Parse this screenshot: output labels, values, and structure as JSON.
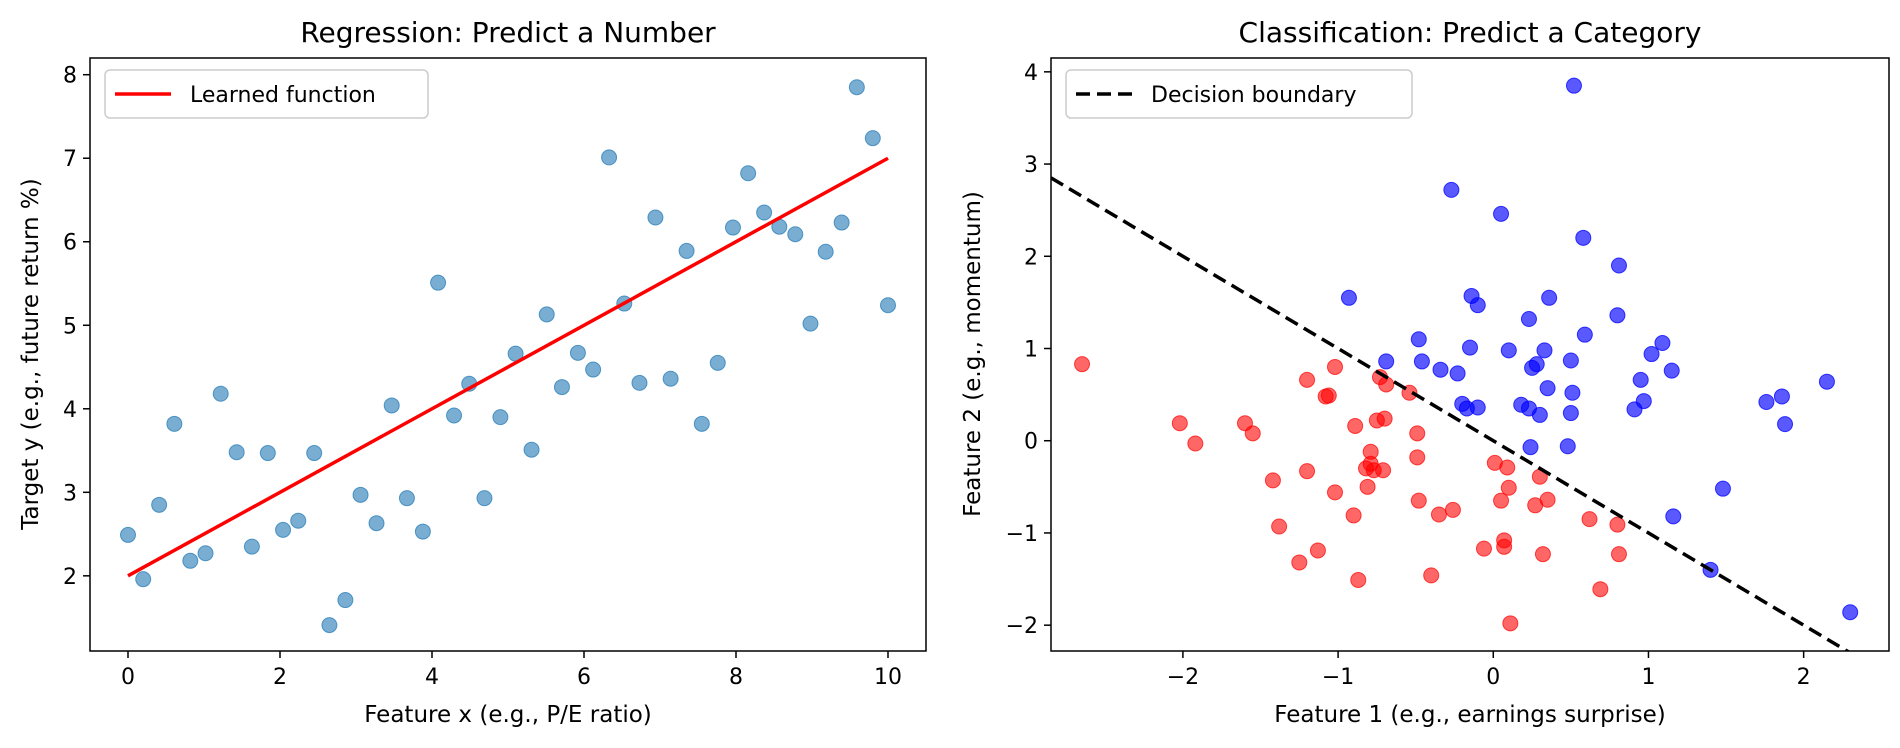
{
  "chart_data": [
    {
      "type": "scatter",
      "title": "Regression: Predict a Number",
      "xlabel": "Feature x (e.g., P/E ratio)",
      "ylabel": "Target y (e.g., future return %)",
      "xlim": [
        -0.5,
        10.5
      ],
      "ylim": [
        1.1,
        8.2
      ],
      "xticks": [
        0,
        2,
        4,
        6,
        8,
        10
      ],
      "yticks": [
        2,
        3,
        4,
        5,
        6,
        7,
        8
      ],
      "legend": {
        "position": "top-left",
        "entries": [
          "Learned function"
        ]
      },
      "colors": {
        "points": "#1f77b4",
        "line": "#ff0000"
      },
      "series": [
        {
          "name": "Data points",
          "kind": "scatter",
          "points": [
            [
              0.0,
              2.49
            ],
            [
              0.2,
              1.96
            ],
            [
              0.41,
              2.85
            ],
            [
              0.61,
              3.82
            ],
            [
              0.82,
              2.18
            ],
            [
              1.02,
              2.27
            ],
            [
              1.22,
              4.18
            ],
            [
              1.43,
              3.48
            ],
            [
              1.63,
              2.35
            ],
            [
              1.84,
              3.47
            ],
            [
              2.04,
              2.55
            ],
            [
              2.24,
              2.66
            ],
            [
              2.45,
              3.47
            ],
            [
              2.65,
              1.41
            ],
            [
              2.86,
              1.71
            ],
            [
              3.06,
              2.97
            ],
            [
              3.27,
              2.63
            ],
            [
              3.47,
              4.04
            ],
            [
              3.67,
              2.93
            ],
            [
              3.88,
              2.53
            ],
            [
              4.08,
              5.51
            ],
            [
              4.29,
              3.92
            ],
            [
              4.49,
              4.3
            ],
            [
              4.69,
              2.93
            ],
            [
              4.9,
              3.9
            ],
            [
              5.1,
              4.66
            ],
            [
              5.31,
              3.51
            ],
            [
              5.51,
              5.13
            ],
            [
              5.71,
              4.26
            ],
            [
              5.92,
              4.67
            ],
            [
              6.12,
              4.47
            ],
            [
              6.33,
              7.01
            ],
            [
              6.53,
              5.26
            ],
            [
              6.73,
              4.31
            ],
            [
              6.94,
              6.29
            ],
            [
              7.14,
              4.36
            ],
            [
              7.35,
              5.89
            ],
            [
              7.55,
              3.82
            ],
            [
              7.76,
              4.55
            ],
            [
              7.96,
              6.17
            ],
            [
              8.16,
              6.82
            ],
            [
              8.37,
              6.35
            ],
            [
              8.57,
              6.18
            ],
            [
              8.78,
              6.09
            ],
            [
              8.98,
              5.02
            ],
            [
              9.18,
              5.88
            ],
            [
              9.39,
              6.23
            ],
            [
              9.59,
              7.85
            ],
            [
              9.8,
              7.24
            ],
            [
              10.0,
              5.24
            ]
          ]
        },
        {
          "name": "Learned function",
          "kind": "line",
          "points": [
            [
              0,
              2.0
            ],
            [
              10,
              7.0
            ]
          ]
        }
      ]
    },
    {
      "type": "scatter",
      "title": "Classification: Predict a Category",
      "xlabel": "Feature 1 (e.g., earnings surprise)",
      "ylabel": "Feature 2 (e.g., momentum)",
      "xlim": [
        -2.85,
        2.55
      ],
      "ylim": [
        -2.28,
        4.15
      ],
      "xticks": [
        -2,
        -1,
        0,
        1,
        2
      ],
      "yticks": [
        -2,
        -1,
        0,
        1,
        2,
        3,
        4
      ],
      "legend": {
        "position": "top-left",
        "entries": [
          "Decision boundary"
        ]
      },
      "colors": {
        "class_a": "#0000ff",
        "class_b": "#ff0000",
        "boundary": "#000000"
      },
      "series": [
        {
          "name": "Class A",
          "kind": "scatter",
          "points": [
            [
              0.52,
              3.85
            ],
            [
              -0.27,
              2.72
            ],
            [
              0.05,
              2.46
            ],
            [
              0.58,
              2.2
            ],
            [
              0.81,
              1.9
            ],
            [
              -0.93,
              1.55
            ],
            [
              -0.14,
              1.57
            ],
            [
              -0.1,
              1.47
            ],
            [
              0.36,
              1.55
            ],
            [
              0.23,
              1.32
            ],
            [
              0.8,
              1.36
            ],
            [
              0.59,
              1.15
            ],
            [
              -0.48,
              1.1
            ],
            [
              1.09,
              1.06
            ],
            [
              1.02,
              0.94
            ],
            [
              -0.15,
              1.01
            ],
            [
              0.1,
              0.98
            ],
            [
              0.33,
              0.98
            ],
            [
              -0.69,
              0.86
            ],
            [
              -0.46,
              0.86
            ],
            [
              0.28,
              0.83
            ],
            [
              0.25,
              0.79
            ],
            [
              0.5,
              0.87
            ],
            [
              -0.34,
              0.77
            ],
            [
              -0.23,
              0.73
            ],
            [
              1.15,
              0.76
            ],
            [
              0.95,
              0.66
            ],
            [
              0.35,
              0.57
            ],
            [
              0.51,
              0.52
            ],
            [
              -0.2,
              0.4
            ],
            [
              -0.17,
              0.35
            ],
            [
              -0.1,
              0.36
            ],
            [
              0.18,
              0.39
            ],
            [
              0.23,
              0.35
            ],
            [
              0.3,
              0.28
            ],
            [
              0.5,
              0.3
            ],
            [
              0.97,
              0.43
            ],
            [
              0.91,
              0.34
            ],
            [
              1.76,
              0.42
            ],
            [
              1.86,
              0.48
            ],
            [
              2.15,
              0.64
            ],
            [
              1.88,
              0.18
            ],
            [
              0.24,
              -0.07
            ],
            [
              0.48,
              -0.06
            ],
            [
              1.48,
              -0.52
            ],
            [
              1.16,
              -0.82
            ],
            [
              1.4,
              -1.4
            ],
            [
              2.3,
              -1.86
            ]
          ]
        },
        {
          "name": "Class B",
          "kind": "scatter",
          "points": [
            [
              -2.65,
              0.83
            ],
            [
              -2.02,
              0.19
            ],
            [
              -1.92,
              -0.03
            ],
            [
              -1.6,
              0.19
            ],
            [
              -1.55,
              0.08
            ],
            [
              -1.2,
              0.66
            ],
            [
              -1.08,
              0.48
            ],
            [
              -1.06,
              0.49
            ],
            [
              -1.02,
              0.8
            ],
            [
              -0.73,
              0.69
            ],
            [
              -0.69,
              0.61
            ],
            [
              -0.54,
              0.52
            ],
            [
              -0.89,
              0.16
            ],
            [
              -0.75,
              0.22
            ],
            [
              -0.7,
              0.24
            ],
            [
              -0.49,
              0.08
            ],
            [
              -0.82,
              -0.3
            ],
            [
              -0.77,
              -0.32
            ],
            [
              -0.79,
              -0.12
            ],
            [
              -0.71,
              -0.32
            ],
            [
              -0.79,
              -0.25
            ],
            [
              -1.2,
              -0.33
            ],
            [
              -1.42,
              -0.43
            ],
            [
              -1.02,
              -0.56
            ],
            [
              -0.81,
              -0.5
            ],
            [
              -0.49,
              -0.18
            ],
            [
              -0.48,
              -0.65
            ],
            [
              -0.35,
              -0.8
            ],
            [
              -0.26,
              -0.75
            ],
            [
              -0.9,
              -0.81
            ],
            [
              -1.38,
              -0.93
            ],
            [
              -1.13,
              -1.19
            ],
            [
              -1.25,
              -1.32
            ],
            [
              -0.87,
              -1.51
            ],
            [
              -0.4,
              -1.46
            ],
            [
              0.01,
              -0.24
            ],
            [
              0.09,
              -0.29
            ],
            [
              0.3,
              -0.39
            ],
            [
              0.1,
              -0.51
            ],
            [
              0.05,
              -0.65
            ],
            [
              0.35,
              -0.64
            ],
            [
              0.27,
              -0.7
            ],
            [
              0.62,
              -0.85
            ],
            [
              0.8,
              -0.91
            ],
            [
              -0.06,
              -1.17
            ],
            [
              0.07,
              -1.08
            ],
            [
              0.07,
              -1.15
            ],
            [
              0.11,
              -1.98
            ],
            [
              0.32,
              -1.23
            ],
            [
              0.81,
              -1.23
            ],
            [
              0.69,
              -1.61
            ]
          ]
        },
        {
          "name": "Decision boundary",
          "kind": "line",
          "points": [
            [
              -2.85,
              2.85
            ],
            [
              2.3,
              -2.3
            ]
          ]
        }
      ]
    }
  ]
}
